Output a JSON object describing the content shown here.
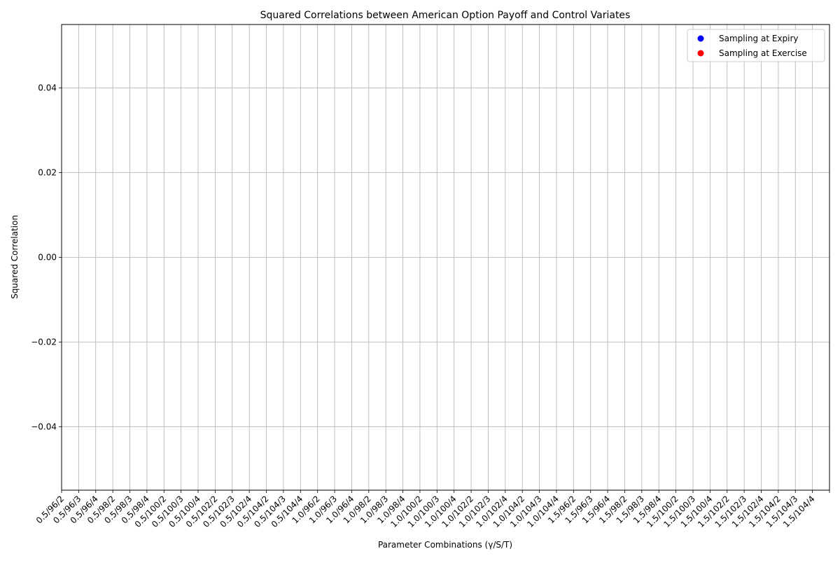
{
  "chart_data": {
    "type": "scatter",
    "title": "Squared Correlations between American Option Payoff and Control Variates",
    "xlabel": "Parameter Combinations (γ/S/T)",
    "ylabel": "Squared Correlation",
    "categories": [
      "0.5/96/2",
      "0.5/96/3",
      "0.5/96/4",
      "0.5/98/2",
      "0.5/98/3",
      "0.5/98/4",
      "0.5/100/2",
      "0.5/100/3",
      "0.5/100/4",
      "0.5/102/2",
      "0.5/102/3",
      "0.5/102/4",
      "0.5/104/2",
      "0.5/104/3",
      "0.5/104/4",
      "1.0/96/2",
      "1.0/96/3",
      "1.0/96/4",
      "1.0/98/2",
      "1.0/98/3",
      "1.0/98/4",
      "1.0/100/2",
      "1.0/100/3",
      "1.0/100/4",
      "1.0/102/2",
      "1.0/102/3",
      "1.0/102/4",
      "1.0/104/2",
      "1.0/104/3",
      "1.0/104/4",
      "1.5/96/2",
      "1.5/96/3",
      "1.5/96/4",
      "1.5/98/2",
      "1.5/98/3",
      "1.5/98/4",
      "1.5/100/2",
      "1.5/100/3",
      "1.5/100/4",
      "1.5/102/2",
      "1.5/102/3",
      "1.5/102/4",
      "1.5/104/2",
      "1.5/104/3",
      "1.5/104/4"
    ],
    "xlim": [
      -1,
      44
    ],
    "ylim": [
      -0.055,
      0.055
    ],
    "yticks": [
      -0.04,
      -0.02,
      0.0,
      0.02,
      0.04
    ],
    "ytick_labels": [
      "−0.04",
      "−0.02",
      "0.00",
      "0.02",
      "0.04"
    ],
    "grid": true,
    "legend_position": "top-right",
    "series": [
      {
        "name": "Sampling at Expiry",
        "color": "#0000ff",
        "values": []
      },
      {
        "name": "Sampling at Exercise",
        "color": "#ff0000",
        "values": []
      }
    ]
  }
}
